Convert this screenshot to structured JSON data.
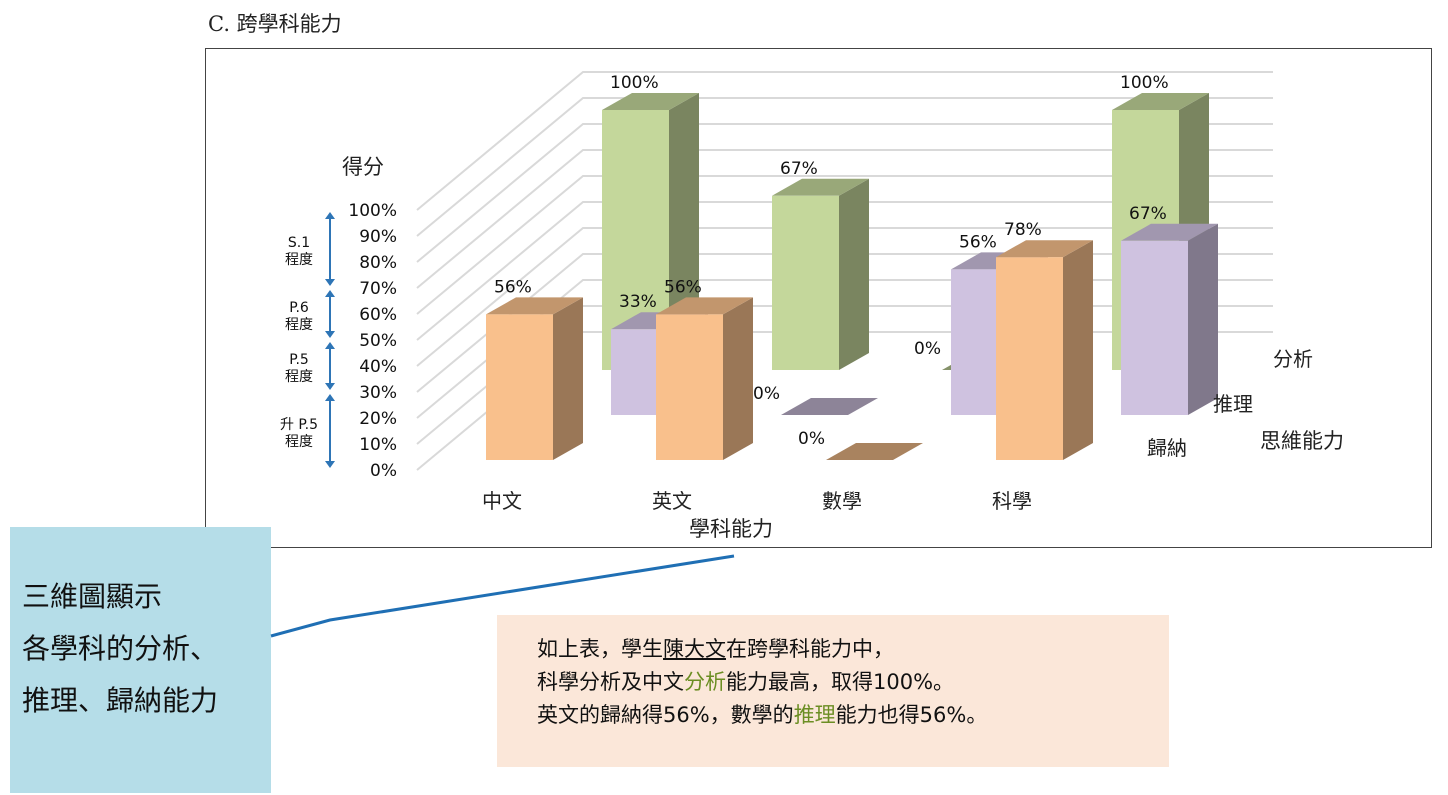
{
  "section_title": "C. 跨學科能力",
  "chart_data": {
    "type": "bar",
    "projection": "3d-clustered",
    "ylabel": "得分",
    "xlabel": "學科能力",
    "zlabel": "思維能力",
    "ylim": [
      0,
      100
    ],
    "y_ticks": [
      "0%",
      "10%",
      "20%",
      "30%",
      "40%",
      "50%",
      "60%",
      "70%",
      "80%",
      "90%",
      "100%"
    ],
    "categories": [
      "中文",
      "英文",
      "數學",
      "科學"
    ],
    "series": [
      {
        "name": "歸納",
        "values": [
          56,
          56,
          0,
          78
        ],
        "color": "#f9c08c"
      },
      {
        "name": "推理",
        "values": [
          33,
          0,
          56,
          67
        ],
        "color": "#cfc2e0"
      },
      {
        "name": "分析",
        "values": [
          100,
          67,
          0,
          100
        ],
        "color": "#c4d79b"
      }
    ],
    "grid": true,
    "level_bands": [
      {
        "label_top": "S.1",
        "label_bottom": "程度"
      },
      {
        "label_top": "P.6",
        "label_bottom": "程度"
      },
      {
        "label_top": "P.5",
        "label_bottom": "程度"
      },
      {
        "label_top": "升 P.5",
        "label_bottom": "程度"
      }
    ]
  },
  "callout": {
    "lines": [
      "三維圖顯示",
      "各學科的分析、",
      "推理、歸納能力"
    ]
  },
  "note": {
    "line1": {
      "prefix": "如上表，學生",
      "name": "陳大文",
      "suffix": "在跨學科能力中，"
    },
    "line2": {
      "prefix": "科學分析及中文",
      "highlight": "分析",
      "suffix": "能力最高，取得100%。"
    },
    "line3": {
      "prefix": "英文的歸納得56%，數學的",
      "highlight": "推理",
      "suffix": "能力也得56%。"
    }
  }
}
